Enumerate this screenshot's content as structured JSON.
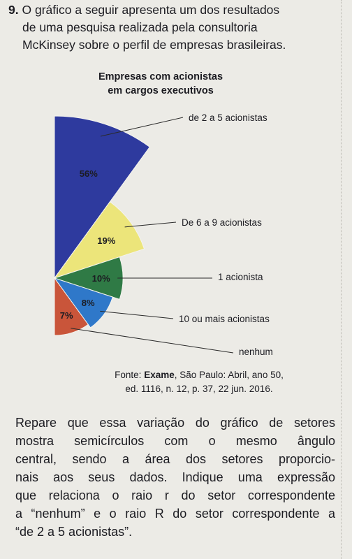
{
  "question": {
    "number": "9.",
    "lines": [
      "O gráfico a seguir apresenta um dos resultados",
      "de uma pesquisa realizada pela consultoria",
      "McKinsey sobre o perfil de empresas brasileiras."
    ]
  },
  "chart_data": {
    "type": "pie",
    "title_lines": [
      "Empresas com acionistas",
      "em cargos executivos"
    ],
    "slices": [
      {
        "category": "de 2 a 5 acionistas",
        "value": 56,
        "value_label": "56%",
        "color": "#2e3a9e"
      },
      {
        "category": "De 6 a 9 acionistas",
        "value": 19,
        "value_label": "19%",
        "color": "#ece57a"
      },
      {
        "category": "1 acionista",
        "value": 10,
        "value_label": "10%",
        "color": "#2f7a45"
      },
      {
        "category": "10 ou mais acionistas",
        "value": 8,
        "value_label": "8%",
        "color": "#2f78c9"
      },
      {
        "category": "nenhum",
        "value": 7,
        "value_label": "7%",
        "color": "#c9553a"
      }
    ]
  },
  "source": {
    "prefix": "Fonte: ",
    "publication": "Exame",
    "rest": ", São Paulo: Abril, ano 50,",
    "line2": "ed. 1116, n. 12, p. 37, 22 jun. 2016."
  },
  "body_lines": [
    "Repare que essa variação do gráfico de setores",
    "mostra semicírculos com o mesmo ângulo",
    "central, sendo a área dos setores proporcio-",
    "nais aos seus dados. Indique uma expressão",
    "que relaciona o raio r do setor correspondente",
    "a “nenhum” e o raio R do setor correspondente a",
    "“de 2 a 5 acionistas”."
  ]
}
